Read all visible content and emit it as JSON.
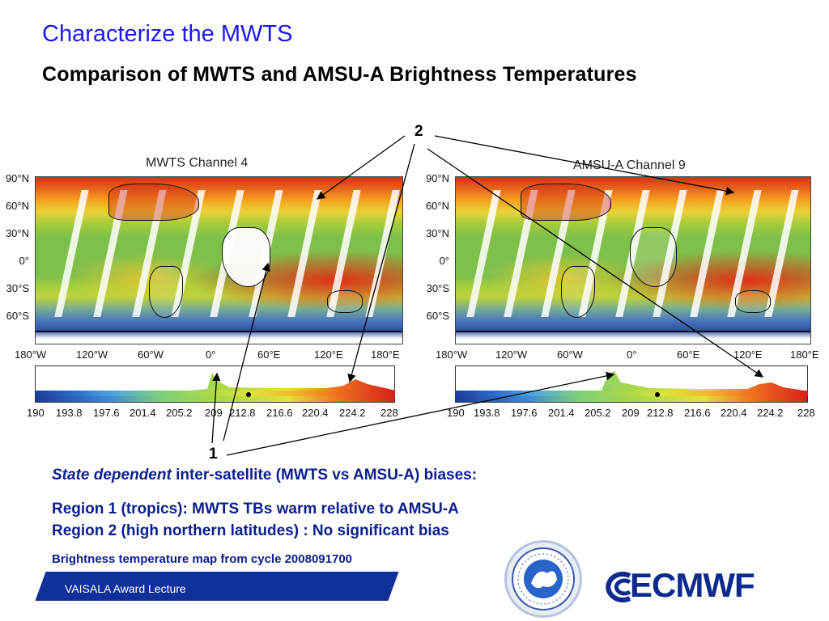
{
  "slide": {
    "title": "Characterize the MWTS",
    "subtitle": "Comparison of MWTS and AMSU-A Brightness Temperatures"
  },
  "maps": [
    {
      "title": "MWTS Channel 4",
      "lat_labels": [
        "90°N",
        "60°N",
        "30°N",
        "0°",
        "30°S",
        "60°S"
      ],
      "lon_labels": [
        "180°W",
        "120°W",
        "60°W",
        "0°",
        "60°E",
        "120°E",
        "180°E"
      ],
      "colorbar_ticks": [
        "190",
        "193.8",
        "197.6",
        "201.4",
        "205.2",
        "209",
        "212.8",
        "216.6",
        "220.4",
        "224.2",
        "228"
      ]
    },
    {
      "title": "AMSU-A Channel 9",
      "lat_labels": [
        "90°N",
        "60°N",
        "30°N",
        "0°",
        "30°S",
        "60°S"
      ],
      "lon_labels": [
        "180°W",
        "120°W",
        "60°W",
        "0°",
        "60°E",
        "120°E",
        "180°E"
      ],
      "colorbar_ticks": [
        "190",
        "193.8",
        "197.6",
        "201.4",
        "205.2",
        "209",
        "212.8",
        "216.6",
        "220.4",
        "224.2",
        "228"
      ]
    }
  ],
  "callouts": {
    "one": "1",
    "two": "2"
  },
  "notes": {
    "line1_italic": "State dependent",
    "line1_rest": " inter-satellite (MWTS vs AMSU-A) biases:",
    "line2": "Region 1 (tropics): MWTS TBs warm relative to AMSU-A",
    "line3": "Region 2 (high northern latitudes) : No significant bias"
  },
  "caption": "Brightness temperature map from cycle 2008091700",
  "footer": {
    "label": "VAISALA Award Lecture"
  },
  "logos": {
    "ecmwf": "ECMWF"
  },
  "colors": {
    "title": "#1a1af0",
    "body_text": "#0b1f8c",
    "footer_bar": "#0f2f9a"
  }
}
